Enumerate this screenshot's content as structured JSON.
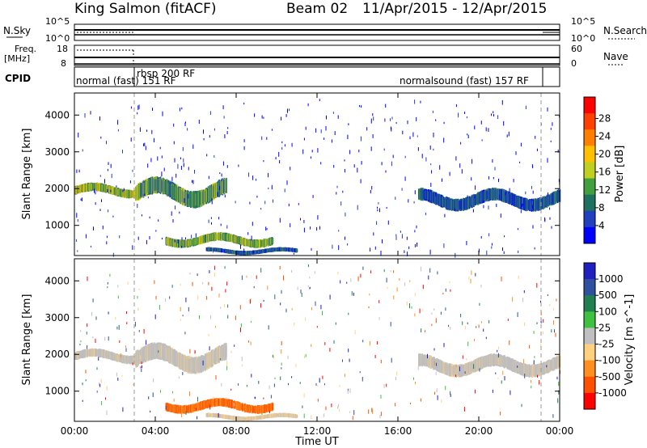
{
  "header": {
    "station": "King Salmon (fitACF)",
    "beam": "Beam 02",
    "date_range": "11/Apr/2015 - 12/Apr/2015"
  },
  "noise_panel": {
    "left_label": "N.Sky",
    "left_ticks": [
      "10^5",
      "10^0"
    ],
    "right_label": "N.Search",
    "right_ticks": [
      "10^5",
      "10^0"
    ]
  },
  "freq_panel": {
    "left_label_1": "Freq.",
    "left_label_2": "[MHz]",
    "left_ticks": [
      "18",
      "8"
    ],
    "right_label": "Nave",
    "right_ticks": [
      "60",
      "0"
    ]
  },
  "cpid_panel": {
    "label": "CPID",
    "modes": [
      "normal (fast) 151 RF",
      "rbsp 200 RF",
      "normalsound (fast) 157 RF"
    ]
  },
  "colors": {
    "power_scale": [
      "#0000ff",
      "#2040c0",
      "#207060",
      "#40a040",
      "#c0d020",
      "#ffc000",
      "#ff8000",
      "#ff4000",
      "#ff0000"
    ],
    "velocity_scale": [
      "#2020c0",
      "#3050a0",
      "#208050",
      "#40c040",
      "#c0c0c0",
      "#ffd080",
      "#ff9020",
      "#ff5000",
      "#ff0000"
    ],
    "ground_scatter": "#bebebe"
  },
  "chart_data": [
    {
      "type": "heatmap",
      "title": "Power",
      "xlabel": "",
      "ylabel": "Slant Range [km]",
      "xlim": [
        "00:00",
        "00:00"
      ],
      "ylim": [
        180,
        4600
      ],
      "x_ticks": [
        "00:00",
        "04:00",
        "08:00",
        "12:00",
        "16:00",
        "20:00",
        "00:00"
      ],
      "y_ticks": [
        1000,
        2000,
        3000,
        4000
      ],
      "colorbar": {
        "label": "Power [dB]",
        "ticks": [
          "4",
          "8",
          "12",
          "16",
          "20",
          "24",
          "28"
        ],
        "range": [
          0,
          30
        ]
      },
      "echo_regions": [
        {
          "t_start": 0.0,
          "t_end": 4.3,
          "range_start": 1750,
          "range_end": 2150,
          "level": 14
        },
        {
          "t_start": 3.0,
          "t_end": 7.5,
          "range_start": 1500,
          "range_end": 2300,
          "level": 10
        },
        {
          "t_start": 4.5,
          "t_end": 9.8,
          "range_start": 400,
          "range_end": 800,
          "level": 12
        },
        {
          "t_start": 6.5,
          "t_end": 11.0,
          "range_start": 200,
          "range_end": 400,
          "level": 6
        },
        {
          "t_start": 17.0,
          "t_end": 24.0,
          "range_start": 1400,
          "range_end": 2000,
          "level": 5
        }
      ]
    },
    {
      "type": "heatmap",
      "title": "Velocity",
      "xlabel": "Time UT",
      "ylabel": "Slant Range [km]",
      "xlim": [
        "00:00",
        "00:00"
      ],
      "ylim": [
        180,
        4600
      ],
      "x_ticks": [
        "00:00",
        "04:00",
        "08:00",
        "12:00",
        "16:00",
        "20:00",
        "00:00"
      ],
      "y_ticks": [
        1000,
        2000,
        3000,
        4000
      ],
      "colorbar": {
        "label": "Velocity [m s^-1]",
        "ticks": [
          "1000",
          "500",
          "100",
          "25",
          "-25",
          "-100",
          "-500",
          "-1000"
        ]
      },
      "echo_regions": [
        {
          "t_start": 0.0,
          "t_end": 4.3,
          "range_start": 1750,
          "range_end": 2150,
          "velocity": 0
        },
        {
          "t_start": 3.0,
          "t_end": 7.5,
          "range_start": 1500,
          "range_end": 2300,
          "velocity": 0
        },
        {
          "t_start": 4.5,
          "t_end": 9.8,
          "range_start": 400,
          "range_end": 800,
          "velocity": -300
        },
        {
          "t_start": 6.5,
          "t_end": 11.0,
          "range_start": 200,
          "range_end": 400,
          "velocity": -50
        },
        {
          "t_start": 17.0,
          "t_end": 24.0,
          "range_start": 1400,
          "range_end": 2000,
          "velocity": 0
        }
      ]
    }
  ]
}
